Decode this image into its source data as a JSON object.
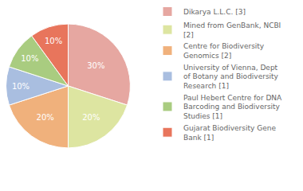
{
  "chart_data": {
    "type": "pie",
    "categories": [
      "Dikarya L.L.C. [3]",
      "Mined from GenBank, NCBI [2]",
      "Centre for Biodiversity Genomics [2]",
      "University of Vienna, Dept of Botany and Biodiversity Research [1]",
      "Paul Hebert Centre for DNA Barcoding and Biodiversity Studies [1]",
      "Gujarat Biodiversity Gene Bank [1]"
    ],
    "values": [
      30,
      20,
      20,
      10,
      10,
      10
    ],
    "value_labels": [
      "30%",
      "20%",
      "20%",
      "10%",
      "10%",
      "10%"
    ],
    "colors": [
      "#e6a7a1",
      "#dde5a1",
      "#f0b17c",
      "#a9bee0",
      "#a9cc80",
      "#e8755c"
    ],
    "data_labels": true,
    "legend": "right"
  }
}
